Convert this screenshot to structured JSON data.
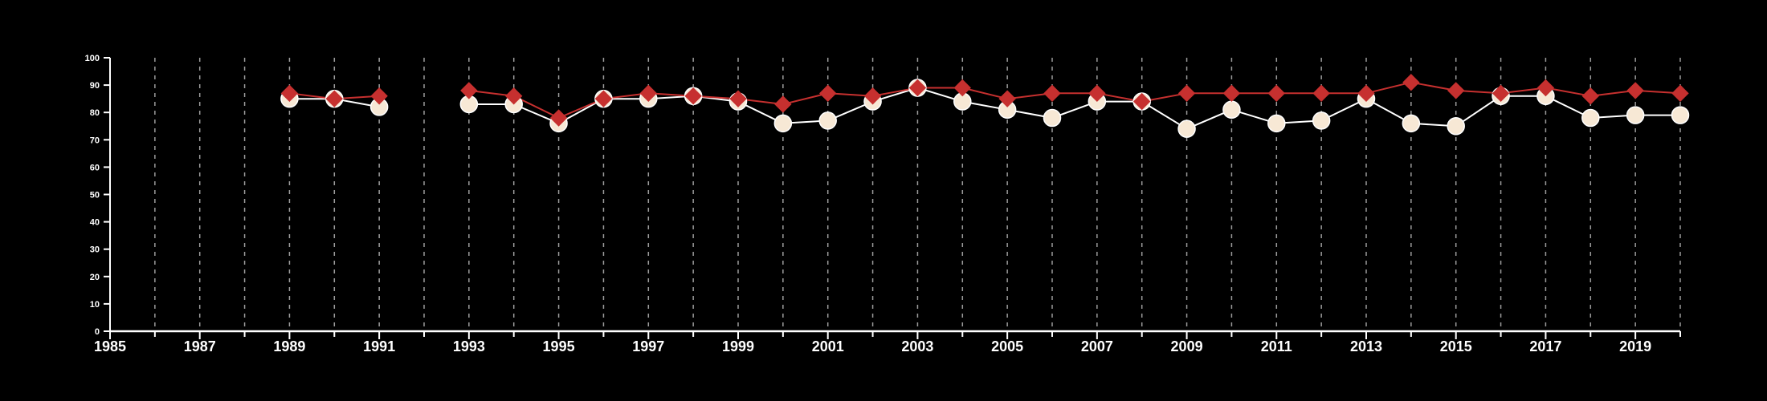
{
  "chart_data": {
    "type": "line",
    "title": "",
    "xlabel": "",
    "ylabel": "",
    "xlim": [
      1985,
      2020
    ],
    "ylim": [
      0,
      100
    ],
    "x_ticks": [
      1985,
      1987,
      1989,
      1991,
      1993,
      1995,
      1997,
      1999,
      2001,
      2003,
      2005,
      2007,
      2009,
      2011,
      2013,
      2015,
      2017,
      2019
    ],
    "y_ticks": [
      0,
      10,
      20,
      30,
      40,
      50,
      60,
      70,
      80,
      90,
      100
    ],
    "vertical_grid": "dashed, one line per year",
    "legend": "none",
    "background_color": "#000000",
    "series": [
      {
        "marker": "circle",
        "color": "#ffffff",
        "marker_fill": "#f7e8d5",
        "x": [
          1989,
          1990,
          1991,
          1993,
          1994,
          1995,
          1996,
          1997,
          1998,
          1999,
          2000,
          2001,
          2002,
          2003,
          2004,
          2005,
          2006,
          2007,
          2008,
          2009,
          2010,
          2011,
          2012,
          2013,
          2014,
          2015,
          2016,
          2017,
          2018,
          2019,
          2020
        ],
        "values": [
          85,
          85,
          82,
          83,
          83,
          76,
          85,
          85,
          86,
          84,
          76,
          77,
          84,
          89,
          84,
          81,
          78,
          84,
          84,
          74,
          81,
          76,
          77,
          85,
          76,
          75,
          86,
          86,
          78,
          79,
          79
        ]
      },
      {
        "marker": "diamond",
        "color": "#c6302f",
        "marker_fill": "#c6302f",
        "x": [
          1989,
          1990,
          1991,
          1993,
          1994,
          1995,
          1996,
          1997,
          1998,
          1999,
          2000,
          2001,
          2002,
          2003,
          2004,
          2005,
          2006,
          2007,
          2008,
          2009,
          2010,
          2011,
          2012,
          2013,
          2014,
          2015,
          2016,
          2017,
          2018,
          2019,
          2020
        ],
        "values": [
          87,
          85,
          86,
          88,
          86,
          78,
          85,
          87,
          86,
          85,
          83,
          87,
          86,
          89,
          89,
          85,
          87,
          87,
          84,
          87,
          87,
          87,
          87,
          87,
          91,
          88,
          87,
          89,
          86,
          88,
          87
        ]
      }
    ]
  }
}
